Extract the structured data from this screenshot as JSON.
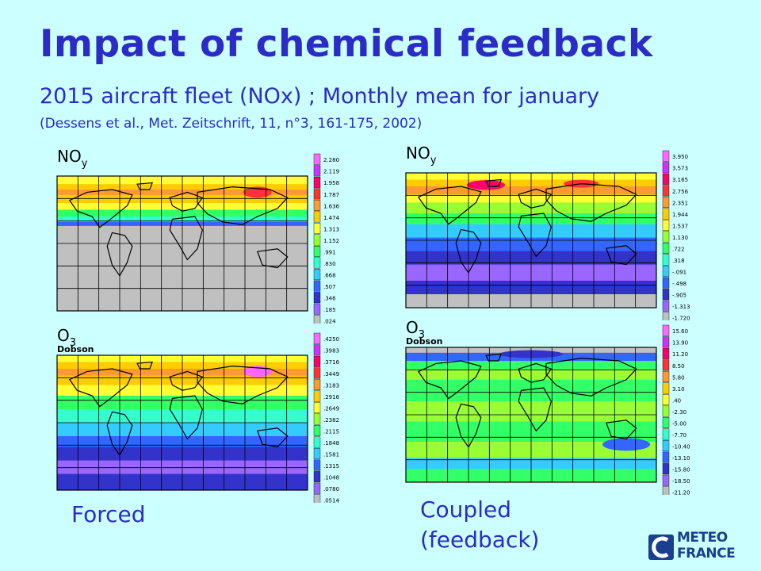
{
  "title": "Impact of chemical feedback",
  "subtitle": "2015 aircraft fleet (NOx) ; Monthly mean for january",
  "citation": "(Dessens et al., Met. Zeitschrift, 11, n°3, 161-175, 2002)",
  "panels": [
    {
      "id": "forced-noy",
      "species": "NO",
      "species_sub": "y",
      "unit": "",
      "legend": [
        "2.280",
        "2.119",
        "1.958",
        "1.787",
        "1.636",
        "1.474",
        "1.313",
        "1.152",
        ".991",
        ".830",
        ".668",
        ".507",
        ".346",
        ".185",
        ".024"
      ],
      "colors": [
        "#ff66ff",
        "#cc33ff",
        "#ff0066",
        "#ff3333",
        "#ff9933",
        "#ffcc00",
        "#ffff33",
        "#99ff33",
        "#33ff66",
        "#33ffcc",
        "#33ccff",
        "#3366ff",
        "#3333cc",
        "#9966ff",
        "#c0c0c0"
      ]
    },
    {
      "id": "coupled-noy",
      "species": "NO",
      "species_sub": "y",
      "unit": "",
      "legend": [
        "3.950",
        "3.573",
        "3.165",
        "2.756",
        "2.351",
        "1.944",
        "1.537",
        "1.130",
        ".722",
        ".318",
        "-.091",
        "-.498",
        "-.905",
        "-1.313",
        "-1.720"
      ],
      "colors": [
        "#ff66ff",
        "#cc33ff",
        "#ff0066",
        "#ff3333",
        "#ff9933",
        "#ffcc00",
        "#ffff33",
        "#99ff33",
        "#33ff66",
        "#33ffcc",
        "#33ccff",
        "#3366ff",
        "#3333cc",
        "#9966ff",
        "#c0c0c0"
      ]
    },
    {
      "id": "forced-o3",
      "species": "O",
      "species_sub": "3",
      "unit": "Dobson",
      "legend": [
        ".4250",
        ".3983",
        ".3716",
        ".3449",
        ".3183",
        ".2916",
        ".2649",
        ".2382",
        ".2115",
        ".1848",
        ".1581",
        ".1315",
        ".1048",
        ".0780",
        ".0514"
      ],
      "colors": [
        "#ff66ff",
        "#cc33ff",
        "#ff0066",
        "#ff3333",
        "#ff9933",
        "#ffcc00",
        "#ffff33",
        "#99ff33",
        "#33ff66",
        "#33ffcc",
        "#33ccff",
        "#3366ff",
        "#3333cc",
        "#9966ff",
        "#c0c0c0"
      ]
    },
    {
      "id": "coupled-o3",
      "species": "O",
      "species_sub": "3",
      "unit": "Dobson",
      "legend": [
        "15.60",
        "13.90",
        "11.20",
        "8.50",
        "5.80",
        "3.10",
        ".40",
        "-2.30",
        "-5.00",
        "-7.70",
        "-10.40",
        "-13.10",
        "-15.80",
        "-18.50",
        "-21.20"
      ],
      "colors": [
        "#ff66ff",
        "#cc33ff",
        "#ff0066",
        "#ff3333",
        "#ff9933",
        "#ffcc00",
        "#ffff33",
        "#99ff33",
        "#33ff66",
        "#33ffcc",
        "#33ccff",
        "#3366ff",
        "#3333cc",
        "#9966ff",
        "#c0c0c0"
      ]
    }
  ],
  "captions": {
    "forced": "Forced",
    "coupled_line1": "Coupled",
    "coupled_line2": "(feedback)"
  },
  "logo": {
    "line1": "METEO",
    "line2": "FRANCE",
    "color": "#1a3f8f"
  },
  "colors": {
    "background": "#ccffff",
    "text": "#2b2bc8"
  }
}
